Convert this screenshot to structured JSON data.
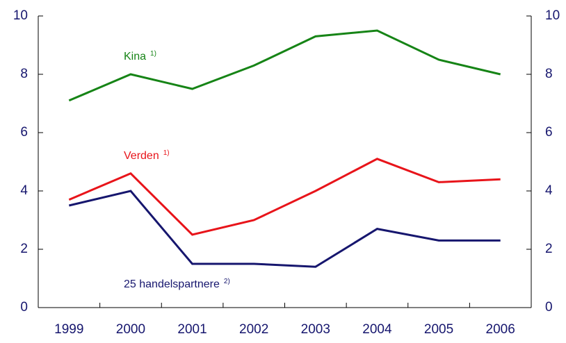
{
  "chart_data": {
    "type": "line",
    "categories": [
      "1999",
      "2000",
      "2001",
      "2002",
      "2003",
      "2004",
      "2005",
      "2006"
    ],
    "series": [
      {
        "name": "Kina",
        "footnote": "1)",
        "color": "#168416",
        "values": [
          7.1,
          8.0,
          7.5,
          8.3,
          9.3,
          9.5,
          8.5,
          8.0
        ]
      },
      {
        "name": "Verden",
        "footnote": "1)",
        "color": "#e8141a",
        "values": [
          3.7,
          4.6,
          2.5,
          3.0,
          4.0,
          5.1,
          4.3,
          4.4
        ]
      },
      {
        "name": "25 handelspartnere",
        "footnote": "2)",
        "color": "#16166e",
        "values": [
          3.5,
          4.0,
          1.5,
          1.5,
          1.4,
          2.7,
          2.3,
          2.3
        ]
      }
    ],
    "ylim": [
      0,
      10
    ],
    "yticks": [
      0,
      2,
      4,
      6,
      8,
      10
    ],
    "y2lim": [
      0,
      10
    ],
    "y2ticks": [
      0,
      2,
      4,
      6,
      8,
      10
    ]
  }
}
